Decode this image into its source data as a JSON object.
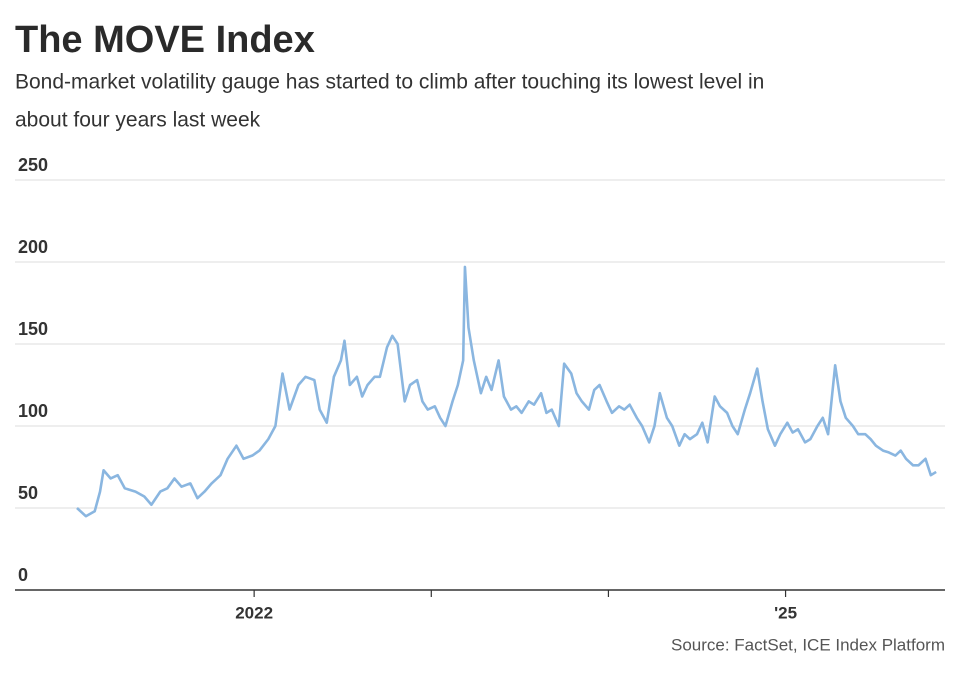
{
  "chart_data": {
    "type": "line",
    "title": "The MOVE Index",
    "subtitle": [
      "Bond-market volatility gauge has started to climb after touching its lowest level in",
      "about four years last week"
    ],
    "source": "Source: FactSet, ICE Index Platform",
    "xlim": [
      2020.65,
      2025.9
    ],
    "xticks": [
      2022,
      {
        "value": 2025,
        "label": "'25"
      }
    ],
    "xminorticks": [
      2023,
      2024
    ],
    "ylim": [
      0,
      250
    ],
    "yticks": [
      0,
      50,
      100,
      150,
      200,
      250
    ],
    "grid": true,
    "x": [
      2021.0,
      2021.05,
      2021.1,
      2021.13,
      2021.15,
      2021.19,
      2021.23,
      2021.27,
      2021.33,
      2021.38,
      2021.42,
      2021.47,
      2021.51,
      2021.55,
      2021.59,
      2021.64,
      2021.68,
      2021.72,
      2021.76,
      2021.81,
      2021.85,
      2021.9,
      2021.94,
      2021.99,
      2022.03,
      2022.08,
      2022.12,
      2022.16,
      2022.2,
      2022.25,
      2022.29,
      2022.34,
      2022.37,
      2022.41,
      2022.45,
      2022.49,
      2022.51,
      2022.54,
      2022.58,
      2022.61,
      2022.64,
      2022.68,
      2022.71,
      2022.75,
      2022.78,
      2022.81,
      2022.85,
      2022.88,
      2022.92,
      2022.95,
      2022.98,
      2023.02,
      2023.05,
      2023.08,
      2023.12,
      2023.15,
      2023.18,
      2023.19,
      2023.21,
      2023.24,
      2023.28,
      2023.31,
      2023.34,
      2023.38,
      2023.41,
      2023.45,
      2023.48,
      2023.51,
      2023.55,
      2023.58,
      2023.62,
      2023.65,
      2023.68,
      2023.72,
      2023.75,
      2023.79,
      2023.82,
      2023.85,
      2023.89,
      2023.92,
      2023.95,
      2023.99,
      2024.02,
      2024.06,
      2024.09,
      2024.12,
      2024.16,
      2024.19,
      2024.23,
      2024.26,
      2024.29,
      2024.33,
      2024.36,
      2024.4,
      2024.43,
      2024.46,
      2024.5,
      2024.53,
      2024.56,
      2024.6,
      2024.63,
      2024.67,
      2024.7,
      2024.73,
      2024.77,
      2024.8,
      2024.84,
      2024.87,
      2024.9,
      2024.94,
      2024.97,
      2025.01,
      2025.04,
      2025.07,
      2025.11,
      2025.14,
      2025.18,
      2025.21,
      2025.24,
      2025.28,
      2025.31,
      2025.34,
      2025.38,
      2025.41,
      2025.45,
      2025.48,
      2025.51,
      2025.55,
      2025.58,
      2025.62,
      2025.65,
      2025.68,
      2025.72,
      2025.75,
      2025.79,
      2025.82,
      2025.85
    ],
    "series": [
      {
        "color": "#8ab6e0",
        "values": [
          50,
          45,
          48,
          60,
          73,
          68,
          70,
          62,
          60,
          57,
          52,
          60,
          62,
          68,
          63,
          65,
          56,
          60,
          65,
          70,
          80,
          88,
          80,
          82,
          85,
          92,
          100,
          132,
          110,
          125,
          130,
          128,
          110,
          102,
          130,
          140,
          152,
          125,
          130,
          118,
          125,
          130,
          130,
          148,
          155,
          150,
          115,
          125,
          128,
          115,
          110,
          112,
          105,
          100,
          115,
          125,
          140,
          197,
          160,
          140,
          120,
          130,
          122,
          140,
          118,
          110,
          112,
          108,
          115,
          113,
          120,
          108,
          110,
          100,
          138,
          132,
          120,
          115,
          110,
          122,
          125,
          115,
          108,
          112,
          110,
          113,
          105,
          100,
          90,
          100,
          120,
          105,
          100,
          88,
          95,
          92,
          95,
          102,
          90,
          118,
          112,
          108,
          100,
          95,
          110,
          120,
          135,
          115,
          98,
          88,
          95,
          102,
          96,
          98,
          90,
          92,
          100,
          105,
          95,
          137,
          115,
          105,
          100,
          95,
          95,
          92,
          88,
          85,
          84,
          82,
          85,
          80,
          76,
          76,
          80,
          70,
          72
        ]
      }
    ]
  }
}
